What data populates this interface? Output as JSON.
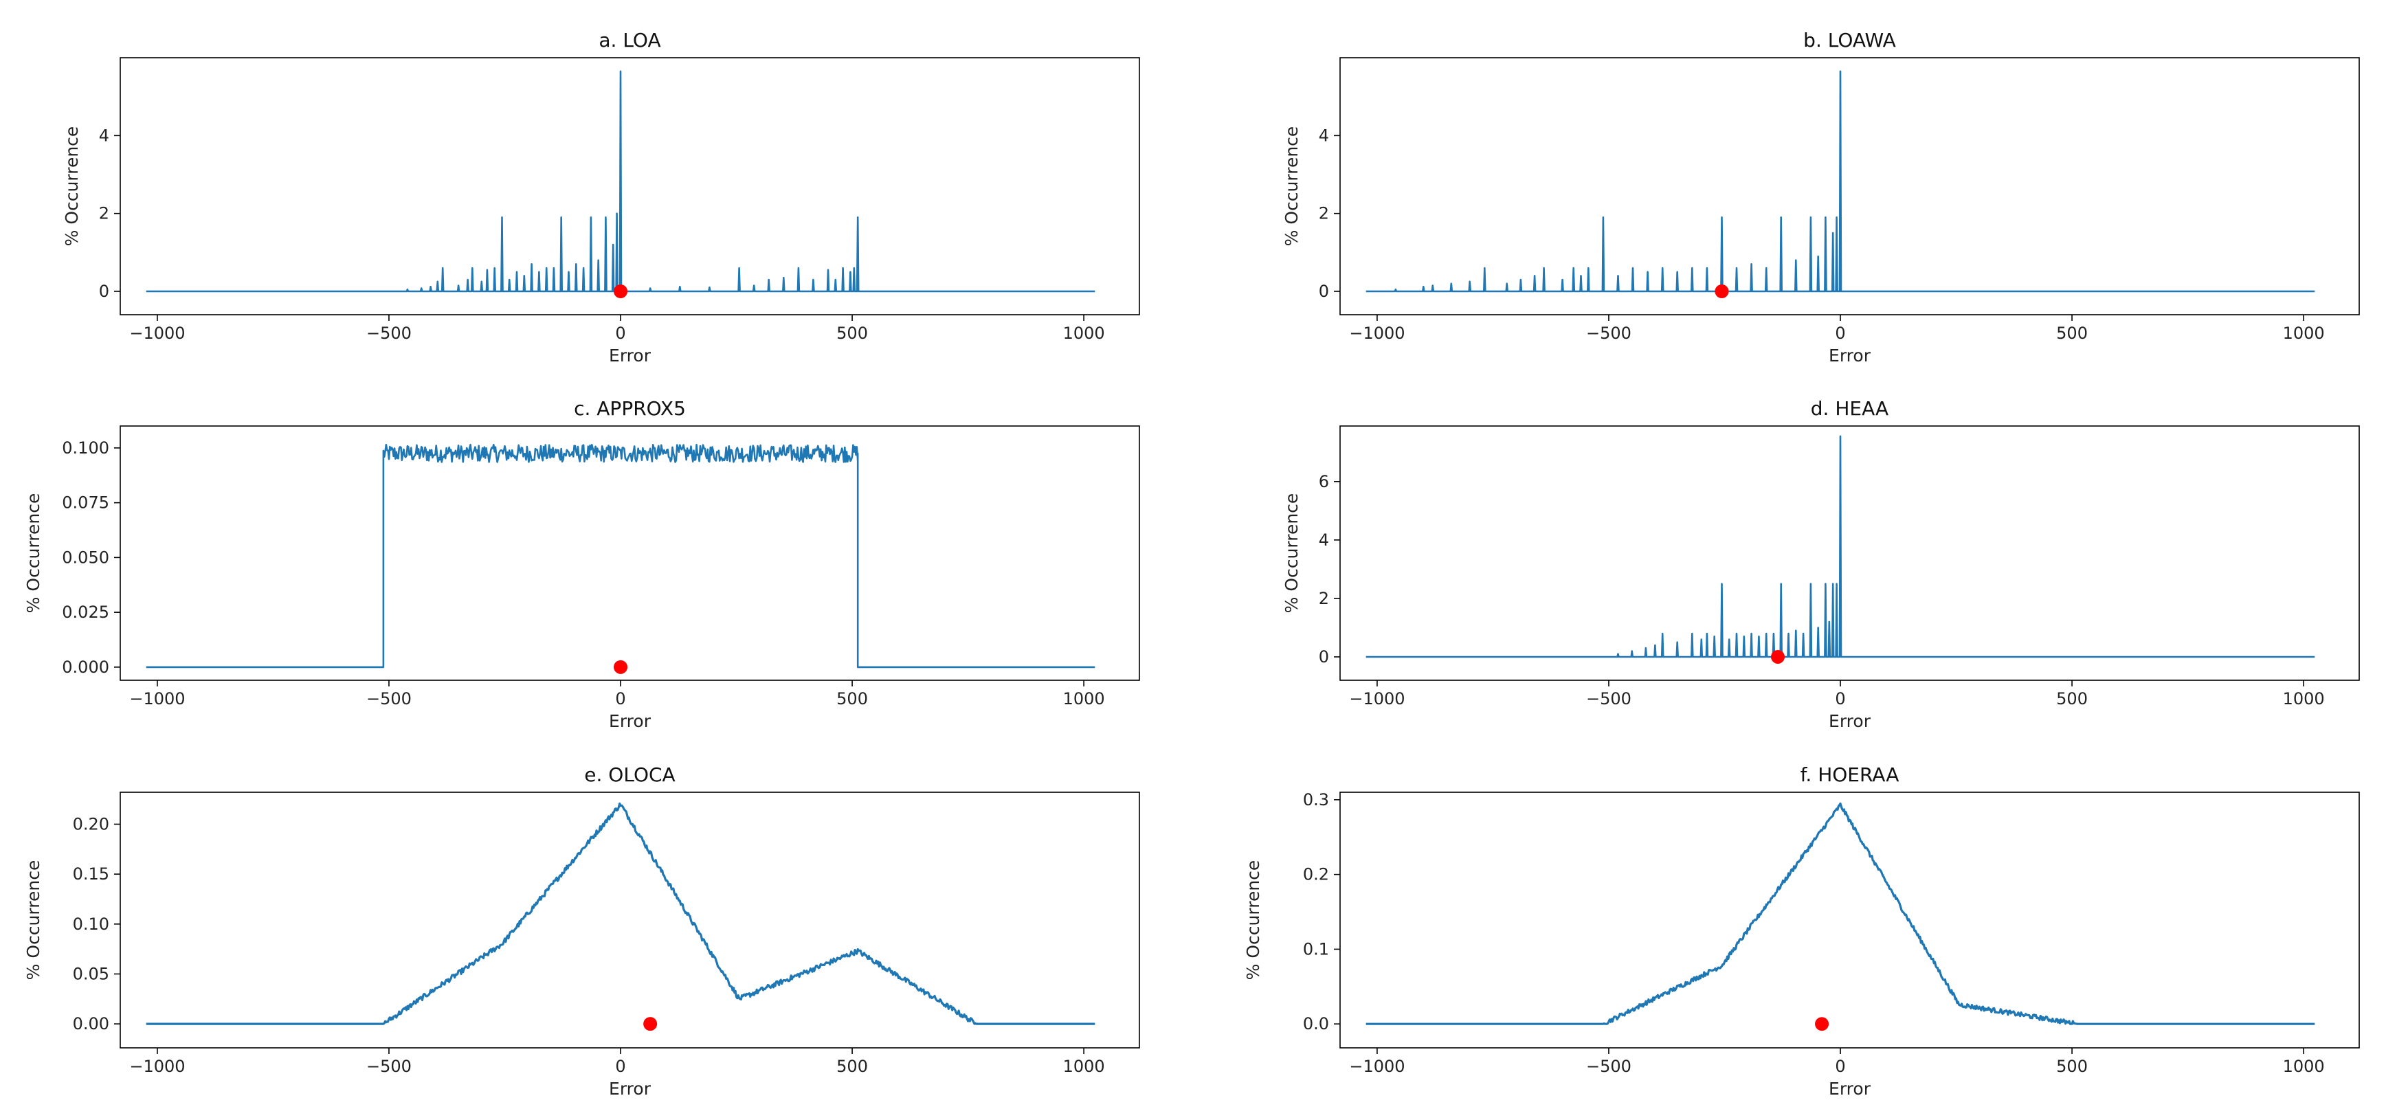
{
  "figure": {
    "series_color": "#1f77b4",
    "marker_color": "#ff0000",
    "axes_color": "#000000"
  },
  "chart_data": [
    {
      "id": "a",
      "type": "line",
      "title": "a. LOA",
      "xlabel": "Error",
      "ylabel": "% Occurrence",
      "xlim": [
        -1080,
        1120
      ],
      "ylim": [
        -0.6,
        6.0
      ],
      "xticks": [
        -1000,
        -500,
        0,
        500,
        1000
      ],
      "xtick_labels": [
        "−1000",
        "−500",
        "0",
        "500",
        "1000"
      ],
      "yticks": [
        0,
        2,
        4
      ],
      "ytick_labels": [
        "0",
        "2",
        "4"
      ],
      "baseline": {
        "x": [
          -1024,
          1024
        ],
        "y": 0
      },
      "spikes": [
        {
          "x": -460,
          "y": 0.05
        },
        {
          "x": -430,
          "y": 0.08
        },
        {
          "x": -410,
          "y": 0.12
        },
        {
          "x": -395,
          "y": 0.25
        },
        {
          "x": -384,
          "y": 0.6
        },
        {
          "x": -350,
          "y": 0.15
        },
        {
          "x": -330,
          "y": 0.3
        },
        {
          "x": -320,
          "y": 0.6
        },
        {
          "x": -300,
          "y": 0.25
        },
        {
          "x": -288,
          "y": 0.55
        },
        {
          "x": -272,
          "y": 0.6
        },
        {
          "x": -256,
          "y": 1.9
        },
        {
          "x": -240,
          "y": 0.3
        },
        {
          "x": -224,
          "y": 0.5
        },
        {
          "x": -208,
          "y": 0.4
        },
        {
          "x": -192,
          "y": 0.7
        },
        {
          "x": -176,
          "y": 0.5
        },
        {
          "x": -160,
          "y": 0.6
        },
        {
          "x": -144,
          "y": 0.6
        },
        {
          "x": -128,
          "y": 1.9
        },
        {
          "x": -112,
          "y": 0.5
        },
        {
          "x": -96,
          "y": 0.7
        },
        {
          "x": -80,
          "y": 0.6
        },
        {
          "x": -64,
          "y": 1.9
        },
        {
          "x": -48,
          "y": 0.8
        },
        {
          "x": -32,
          "y": 1.9
        },
        {
          "x": -16,
          "y": 1.2
        },
        {
          "x": -8,
          "y": 2.0
        },
        {
          "x": 0,
          "y": 5.65
        },
        {
          "x": 64,
          "y": 0.08
        },
        {
          "x": 128,
          "y": 0.12
        },
        {
          "x": 192,
          "y": 0.1
        },
        {
          "x": 256,
          "y": 0.6
        },
        {
          "x": 288,
          "y": 0.15
        },
        {
          "x": 320,
          "y": 0.3
        },
        {
          "x": 352,
          "y": 0.35
        },
        {
          "x": 384,
          "y": 0.6
        },
        {
          "x": 416,
          "y": 0.3
        },
        {
          "x": 448,
          "y": 0.55
        },
        {
          "x": 464,
          "y": 0.3
        },
        {
          "x": 480,
          "y": 0.6
        },
        {
          "x": 496,
          "y": 0.5
        },
        {
          "x": 504,
          "y": 0.6
        },
        {
          "x": 512,
          "y": 1.9
        }
      ],
      "marker": {
        "x": 0,
        "y": 0
      }
    },
    {
      "id": "b",
      "type": "line",
      "title": "b. LOAWA",
      "xlabel": "Error",
      "ylabel": "% Occurrence",
      "xlim": [
        -1080,
        1120
      ],
      "ylim": [
        -0.6,
        6.0
      ],
      "xticks": [
        -1000,
        -500,
        0,
        500,
        1000
      ],
      "xtick_labels": [
        "−1000",
        "−500",
        "0",
        "500",
        "1000"
      ],
      "yticks": [
        0,
        2,
        4
      ],
      "ytick_labels": [
        "0",
        "2",
        "4"
      ],
      "baseline": {
        "x": [
          -1024,
          1024
        ],
        "y": 0
      },
      "spikes": [
        {
          "x": -960,
          "y": 0.05
        },
        {
          "x": -900,
          "y": 0.12
        },
        {
          "x": -880,
          "y": 0.15
        },
        {
          "x": -840,
          "y": 0.2
        },
        {
          "x": -800,
          "y": 0.25
        },
        {
          "x": -768,
          "y": 0.6
        },
        {
          "x": -720,
          "y": 0.2
        },
        {
          "x": -690,
          "y": 0.3
        },
        {
          "x": -660,
          "y": 0.4
        },
        {
          "x": -640,
          "y": 0.6
        },
        {
          "x": -600,
          "y": 0.3
        },
        {
          "x": -576,
          "y": 0.6
        },
        {
          "x": -560,
          "y": 0.4
        },
        {
          "x": -544,
          "y": 0.6
        },
        {
          "x": -512,
          "y": 1.9
        },
        {
          "x": -480,
          "y": 0.4
        },
        {
          "x": -448,
          "y": 0.6
        },
        {
          "x": -416,
          "y": 0.5
        },
        {
          "x": -384,
          "y": 0.6
        },
        {
          "x": -352,
          "y": 0.5
        },
        {
          "x": -320,
          "y": 0.6
        },
        {
          "x": -288,
          "y": 0.6
        },
        {
          "x": -256,
          "y": 1.9
        },
        {
          "x": -224,
          "y": 0.6
        },
        {
          "x": -192,
          "y": 0.7
        },
        {
          "x": -160,
          "y": 0.6
        },
        {
          "x": -128,
          "y": 1.9
        },
        {
          "x": -96,
          "y": 0.8
        },
        {
          "x": -64,
          "y": 1.9
        },
        {
          "x": -48,
          "y": 0.9
        },
        {
          "x": -32,
          "y": 1.9
        },
        {
          "x": -16,
          "y": 1.5
        },
        {
          "x": -8,
          "y": 1.9
        },
        {
          "x": 0,
          "y": 5.65
        }
      ],
      "marker": {
        "x": -256,
        "y": 0
      }
    },
    {
      "id": "c",
      "type": "line",
      "title": "c. APPROX5",
      "xlabel": "Error",
      "ylabel": "% Occurrence",
      "xlim": [
        -1080,
        1120
      ],
      "ylim": [
        -0.006,
        0.11
      ],
      "xticks": [
        -1000,
        -500,
        0,
        500,
        1000
      ],
      "xtick_labels": [
        "−1000",
        "−500",
        "0",
        "500",
        "1000"
      ],
      "yticks": [
        0,
        0.025,
        0.05,
        0.075,
        0.1
      ],
      "ytick_labels": [
        "0.000",
        "0.025",
        "0.050",
        "0.075",
        "0.100"
      ],
      "plateau": {
        "x_start": -512,
        "x_end": 512,
        "level": 0.0975,
        "spread": 0.004,
        "outside": 0
      },
      "marker": {
        "x": 0,
        "y": 0
      }
    },
    {
      "id": "d",
      "type": "line",
      "title": "d. HEAA",
      "xlabel": "Error",
      "ylabel": "% Occurrence",
      "xlim": [
        -1080,
        1120
      ],
      "ylim": [
        -0.8,
        7.9
      ],
      "xticks": [
        -1000,
        -500,
        0,
        500,
        1000
      ],
      "xtick_labels": [
        "−1000",
        "−500",
        "0",
        "500",
        "1000"
      ],
      "yticks": [
        0,
        2,
        4,
        6
      ],
      "ytick_labels": [
        "0",
        "2",
        "4",
        "6"
      ],
      "baseline": {
        "x": [
          -1024,
          1024
        ],
        "y": 0
      },
      "spikes": [
        {
          "x": -480,
          "y": 0.1
        },
        {
          "x": -450,
          "y": 0.2
        },
        {
          "x": -420,
          "y": 0.3
        },
        {
          "x": -400,
          "y": 0.4
        },
        {
          "x": -384,
          "y": 0.8
        },
        {
          "x": -352,
          "y": 0.5
        },
        {
          "x": -320,
          "y": 0.8
        },
        {
          "x": -300,
          "y": 0.6
        },
        {
          "x": -288,
          "y": 0.8
        },
        {
          "x": -272,
          "y": 0.7
        },
        {
          "x": -256,
          "y": 2.5
        },
        {
          "x": -240,
          "y": 0.6
        },
        {
          "x": -224,
          "y": 0.8
        },
        {
          "x": -208,
          "y": 0.7
        },
        {
          "x": -192,
          "y": 0.8
        },
        {
          "x": -176,
          "y": 0.7
        },
        {
          "x": -160,
          "y": 0.8
        },
        {
          "x": -144,
          "y": 0.8
        },
        {
          "x": -128,
          "y": 2.5
        },
        {
          "x": -112,
          "y": 0.8
        },
        {
          "x": -96,
          "y": 0.9
        },
        {
          "x": -80,
          "y": 0.8
        },
        {
          "x": -64,
          "y": 2.5
        },
        {
          "x": -48,
          "y": 1.0
        },
        {
          "x": -32,
          "y": 2.5
        },
        {
          "x": -24,
          "y": 1.2
        },
        {
          "x": -16,
          "y": 2.5
        },
        {
          "x": -8,
          "y": 2.5
        },
        {
          "x": 0,
          "y": 7.55
        }
      ],
      "marker": {
        "x": -135,
        "y": 0
      }
    },
    {
      "id": "e",
      "type": "line",
      "title": "e. OLOCA",
      "xlabel": "Error",
      "ylabel": "% Occurrence",
      "xlim": [
        -1080,
        1120
      ],
      "ylim": [
        -0.024,
        0.232
      ],
      "xticks": [
        -1000,
        -500,
        0,
        500,
        1000
      ],
      "xtick_labels": [
        "−1000",
        "−500",
        "0",
        "500",
        "1000"
      ],
      "yticks": [
        0,
        0.05,
        0.1,
        0.15,
        0.2
      ],
      "ytick_labels": [
        "0.00",
        "0.05",
        "0.10",
        "0.15",
        "0.20"
      ],
      "knots": [
        {
          "x": -1024,
          "y": 0
        },
        {
          "x": -512,
          "y": 0
        },
        {
          "x": -256,
          "y": 0.08
        },
        {
          "x": 0,
          "y": 0.22
        },
        {
          "x": 256,
          "y": 0.025
        },
        {
          "x": 512,
          "y": 0.073
        },
        {
          "x": 768,
          "y": 0
        },
        {
          "x": 1024,
          "y": 0
        }
      ],
      "noise": 0.0025,
      "marker": {
        "x": 64,
        "y": 0
      }
    },
    {
      "id": "f",
      "type": "line",
      "title": "f. HOERAA",
      "xlabel": "Error",
      "ylabel": "% Occurrence",
      "xlim": [
        -1080,
        1120
      ],
      "ylim": [
        -0.032,
        0.31
      ],
      "xticks": [
        -1000,
        -500,
        0,
        500,
        1000
      ],
      "xtick_labels": [
        "−1000",
        "−500",
        "0",
        "500",
        "1000"
      ],
      "yticks": [
        0,
        0.1,
        0.2,
        0.3
      ],
      "ytick_labels": [
        "0.0",
        "0.1",
        "0.2",
        "0.3"
      ],
      "knots": [
        {
          "x": -1024,
          "y": 0
        },
        {
          "x": -512,
          "y": 0
        },
        {
          "x": -256,
          "y": 0.078
        },
        {
          "x": 0,
          "y": 0.293
        },
        {
          "x": 256,
          "y": 0.026
        },
        {
          "x": 512,
          "y": 0
        },
        {
          "x": 1024,
          "y": 0
        }
      ],
      "noise": 0.003,
      "marker": {
        "x": -40,
        "y": 0
      }
    }
  ]
}
